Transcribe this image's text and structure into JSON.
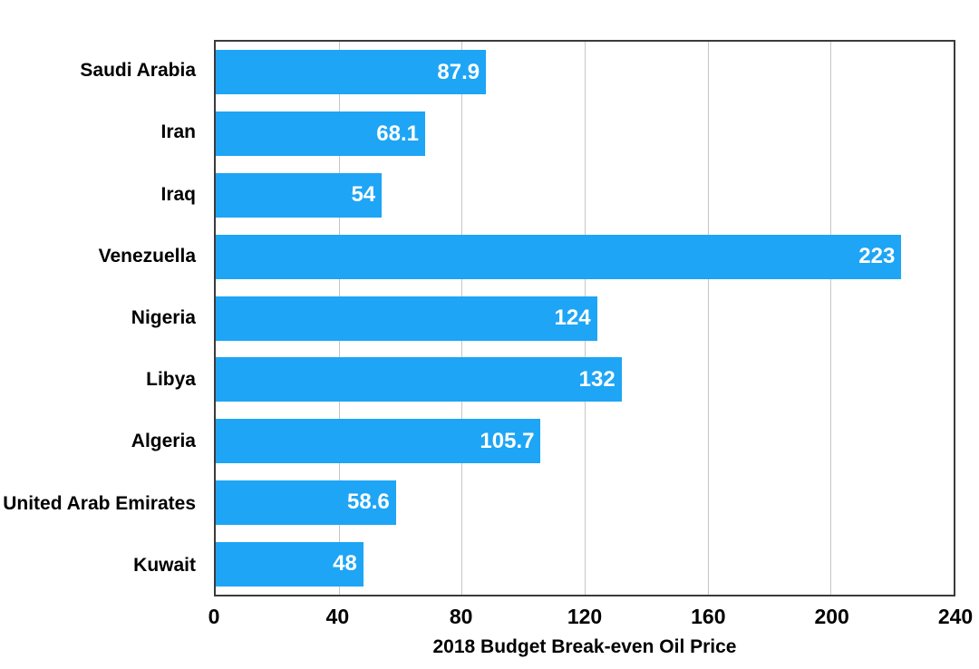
{
  "chart_data": {
    "type": "bar",
    "orientation": "horizontal",
    "title": "",
    "xlabel": "2018 Budget Break-even Oil Price",
    "ylabel": "",
    "categories": [
      "Saudi Arabia",
      "Iran",
      "Iraq",
      "Venezuella",
      "Nigeria",
      "Libya",
      "Algeria",
      "United Arab Emirates",
      "Kuwait"
    ],
    "values": [
      87.9,
      68.1,
      54,
      223,
      124,
      132,
      105.7,
      58.6,
      48
    ],
    "xlim": [
      0,
      240
    ],
    "x_ticks": [
      0,
      40,
      80,
      120,
      160,
      200,
      240
    ],
    "grid": "vertical-gridlines-on",
    "legend": "none",
    "value_label_position": "inside-bar-right-end"
  },
  "colors": {
    "bar": "#1EA5F5",
    "plot_border": "#3B3B3B",
    "gridline": "#C6C6C6",
    "value_text": "#FFFFFF",
    "axis_text": "#000000",
    "bg": "#FFFFFF"
  }
}
